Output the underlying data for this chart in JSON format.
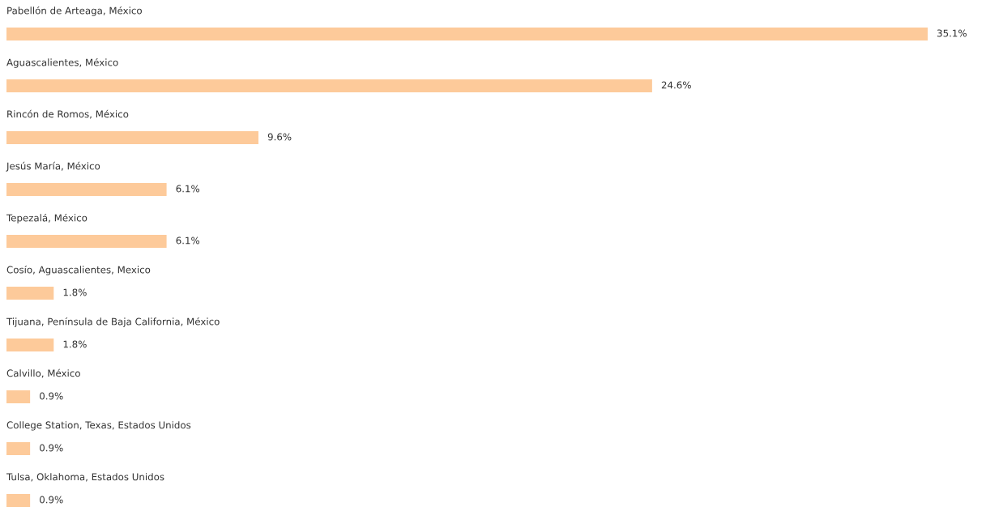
{
  "chart_data": {
    "type": "bar",
    "orientation": "horizontal",
    "color": "#fdca9a",
    "categories": [
      "Pabellón de Arteaga, México",
      "Aguascalientes, México",
      "Rincón de Romos, México",
      "Jesús María, México",
      "Tepezalá, México",
      "Cosío, Aguascalientes, Mexico",
      "Tijuana, Península de Baja California, México",
      "Calvillo, México",
      "College Station, Texas, Estados Unidos",
      "Tulsa, Oklahoma, Estados Unidos"
    ],
    "values": [
      35.1,
      24.6,
      9.6,
      6.1,
      6.1,
      1.8,
      1.8,
      0.9,
      0.9,
      0.9
    ],
    "value_labels": [
      "35.1%",
      "24.6%",
      "9.6%",
      "6.1%",
      "6.1%",
      "1.8%",
      "1.8%",
      "0.9%",
      "0.9%",
      "0.9%"
    ]
  }
}
